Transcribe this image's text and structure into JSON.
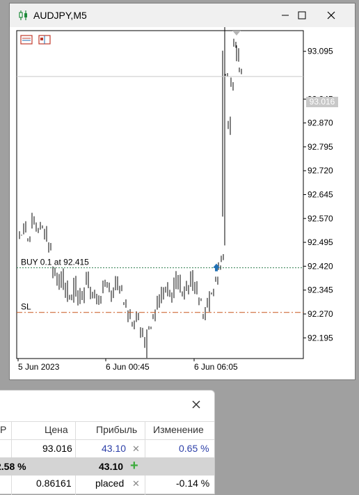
{
  "window": {
    "title": "AUDJPY,M5",
    "minimize_icon": "minimize-icon",
    "maximize_icon": "maximize-icon",
    "close_icon": "close-icon"
  },
  "chart": {
    "current_price_tag": "93.016",
    "price_labels": [
      "93.095",
      "93.016",
      "92.945",
      "92.870",
      "92.795",
      "92.720",
      "92.645",
      "92.570",
      "92.495",
      "92.420",
      "92.345",
      "92.270",
      "92.195"
    ],
    "time_labels": [
      "5 Jun 2023",
      "6 Jun 00:45",
      "6 Jun 06:05"
    ],
    "buy_label": "BUY 0.1 at 92.415",
    "sl_label": "SL",
    "colors": {
      "buy_line": "#2e7d4f",
      "sl_line": "#c8561e",
      "bars": "#000000",
      "arrow": "#1f6fb5"
    }
  },
  "chart_data": {
    "type": "bar",
    "title": "AUDJPY,M5",
    "ylim": [
      92.13,
      93.16
    ],
    "entry_price": 92.415,
    "stop_loss": 92.275,
    "current_price": 93.016,
    "x_ticks": [
      "5 Jun 2023",
      "6 Jun 00:45",
      "6 Jun 06:05"
    ]
  },
  "panel": {
    "close_icon": "close-icon",
    "headers": [
      "Р",
      "Цена",
      "Прибыль",
      "Изменение"
    ],
    "rows": [
      {
        "price": "93.016",
        "profit": "43.10",
        "change": "0.65 %"
      },
      {
        "first": "2.58 %",
        "profit": "43.10"
      },
      {
        "price": "0.86161",
        "profit": "placed",
        "change": "-0.14 %"
      }
    ]
  }
}
